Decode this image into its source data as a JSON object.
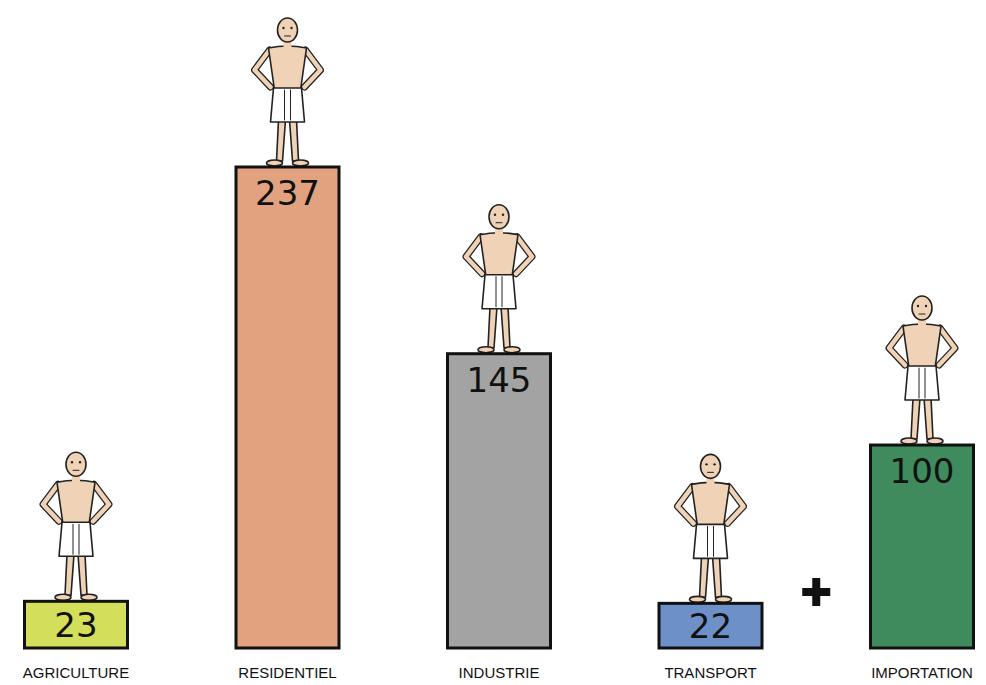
{
  "chart_data": {
    "type": "bar",
    "categories": [
      "AGRICULTURE",
      "RESIDENTIEL",
      "INDUSTRIE",
      "TRANSPORT",
      "IMPORTATION"
    ],
    "values": [
      23,
      237,
      145,
      22,
      100
    ],
    "colors": [
      "#d3de5b",
      "#e2a27f",
      "#a3a3a3",
      "#6d90c8",
      "#3f8b5d"
    ],
    "data_labels": true,
    "tick_labels": "x"
  }
}
